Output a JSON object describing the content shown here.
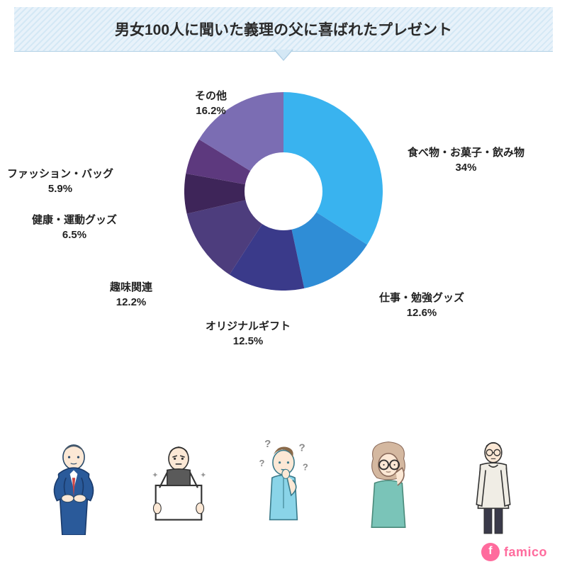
{
  "title": "男女100人に聞いた義理の父に喜ばれたプレゼント",
  "chart": {
    "type": "donut",
    "inner_radius_pct": 39,
    "background_color": "#ffffff",
    "slices": [
      {
        "label": "食べ物・お菓子・飲み物",
        "value": 34.0,
        "value_text": "34%",
        "color": "#39b3ef"
      },
      {
        "label": "仕事・勉強グッズ",
        "value": 12.6,
        "value_text": "12.6%",
        "color": "#2f8dd6"
      },
      {
        "label": "オリジナルギフト",
        "value": 12.5,
        "value_text": "12.5%",
        "color": "#3a3a8a"
      },
      {
        "label": "趣味関連",
        "value": 12.2,
        "value_text": "12.2%",
        "color": "#4d3d7d"
      },
      {
        "label": "健康・運動グッズ",
        "value": 6.5,
        "value_text": "6.5%",
        "color": "#3e2559"
      },
      {
        "label": "ファッション・バッグ",
        "value": 5.9,
        "value_text": "5.9%",
        "color": "#5d397e"
      },
      {
        "label": "その他",
        "value": 16.2,
        "value_text": "16.2%",
        "color": "#7b6db3"
      }
    ],
    "label_fontsize": 15,
    "label_fontweight": "bold",
    "label_color": "#222222"
  },
  "banner": {
    "stripe_color_1": "#d4e8f5",
    "stripe_color_2": "#e8f2fa",
    "border_color": "#b0d0e5",
    "title_fontsize": 21,
    "title_color": "#2a2a2a"
  },
  "logo": {
    "text": "famico",
    "color": "#ff6b9d"
  },
  "people": [
    {
      "name": "man-suit-crossed-arms"
    },
    {
      "name": "man-holding-board"
    },
    {
      "name": "man-thinking-confused"
    },
    {
      "name": "person-glasses"
    },
    {
      "name": "man-sweater-standing"
    }
  ]
}
